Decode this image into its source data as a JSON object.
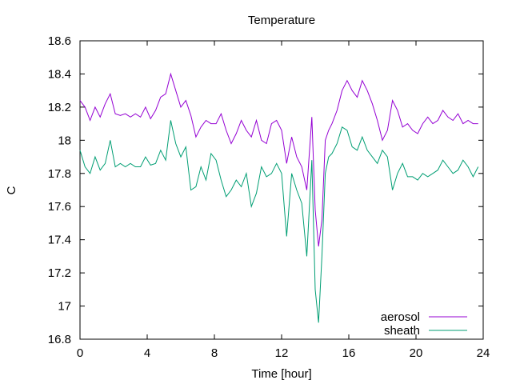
{
  "chart_data": {
    "type": "line",
    "title": "Temperature",
    "xlabel": "Time [hour]",
    "ylabel": "C",
    "xlim": [
      0,
      24
    ],
    "ylim": [
      16.8,
      18.6
    ],
    "xticks": [
      0,
      4,
      8,
      12,
      16,
      20,
      24
    ],
    "yticks": [
      16.8,
      17,
      17.2,
      17.4,
      17.6,
      17.8,
      18,
      18.2,
      18.4,
      18.6
    ],
    "xtick_labels": [
      "0",
      "4",
      "8",
      "12",
      "16",
      "20",
      "24"
    ],
    "ytick_labels": [
      "16.8",
      "17",
      "17.2",
      "17.4",
      "17.6",
      "17.8",
      "18",
      "18.2",
      "18.4",
      "18.6"
    ],
    "grid": false,
    "legend_position": "bottom-right",
    "series": [
      {
        "name": "aerosol",
        "color": "#9400d3",
        "x": [
          0,
          0.3,
          0.6,
          0.9,
          1.2,
          1.5,
          1.8,
          2.1,
          2.4,
          2.7,
          3.0,
          3.3,
          3.6,
          3.9,
          4.2,
          4.5,
          4.8,
          5.1,
          5.4,
          5.7,
          6.0,
          6.3,
          6.6,
          6.9,
          7.2,
          7.5,
          7.8,
          8.1,
          8.4,
          8.7,
          9.0,
          9.3,
          9.6,
          9.9,
          10.2,
          10.5,
          10.8,
          11.1,
          11.4,
          11.7,
          12.0,
          12.3,
          12.6,
          12.9,
          13.2,
          13.5,
          13.8,
          14.0,
          14.2,
          14.4,
          14.6,
          14.8,
          15.0,
          15.3,
          15.6,
          15.9,
          16.2,
          16.5,
          16.8,
          17.1,
          17.4,
          17.7,
          18.0,
          18.3,
          18.6,
          18.9,
          19.2,
          19.5,
          19.8,
          20.1,
          20.4,
          20.7,
          21.0,
          21.3,
          21.6,
          21.9,
          22.2,
          22.5,
          22.8,
          23.1,
          23.4,
          23.7
        ],
        "y": [
          18.24,
          18.2,
          18.12,
          18.2,
          18.14,
          18.22,
          18.28,
          18.16,
          18.15,
          18.16,
          18.14,
          18.16,
          18.14,
          18.2,
          18.13,
          18.18,
          18.26,
          18.28,
          18.4,
          18.3,
          18.2,
          18.24,
          18.15,
          18.02,
          18.08,
          18.12,
          18.1,
          18.1,
          18.16,
          18.06,
          17.98,
          18.04,
          18.12,
          18.06,
          18.02,
          18.12,
          18.0,
          17.98,
          18.1,
          18.12,
          18.06,
          17.86,
          18.02,
          17.9,
          17.84,
          17.7,
          18.14,
          17.58,
          17.36,
          17.52,
          18.0,
          18.06,
          18.1,
          18.18,
          18.3,
          18.36,
          18.3,
          18.26,
          18.36,
          18.3,
          18.22,
          18.12,
          18.0,
          18.06,
          18.24,
          18.18,
          18.08,
          18.1,
          18.06,
          18.04,
          18.1,
          18.14,
          18.1,
          18.12,
          18.18,
          18.14,
          18.12,
          18.16,
          18.1,
          18.12,
          18.1,
          18.1
        ]
      },
      {
        "name": "sheath",
        "color": "#009e73",
        "x": [
          0,
          0.3,
          0.6,
          0.9,
          1.2,
          1.5,
          1.8,
          2.1,
          2.4,
          2.7,
          3.0,
          3.3,
          3.6,
          3.9,
          4.2,
          4.5,
          4.8,
          5.1,
          5.4,
          5.7,
          6.0,
          6.3,
          6.6,
          6.9,
          7.2,
          7.5,
          7.8,
          8.1,
          8.4,
          8.7,
          9.0,
          9.3,
          9.6,
          9.9,
          10.2,
          10.5,
          10.8,
          11.1,
          11.4,
          11.7,
          12.0,
          12.3,
          12.6,
          12.9,
          13.2,
          13.5,
          13.8,
          14.0,
          14.2,
          14.4,
          14.6,
          14.8,
          15.0,
          15.3,
          15.6,
          15.9,
          16.2,
          16.5,
          16.8,
          17.1,
          17.4,
          17.7,
          18.0,
          18.3,
          18.6,
          18.9,
          19.2,
          19.5,
          19.8,
          20.1,
          20.4,
          20.7,
          21.0,
          21.3,
          21.6,
          21.9,
          22.2,
          22.5,
          22.8,
          23.1,
          23.4,
          23.7
        ],
        "y": [
          17.94,
          17.84,
          17.8,
          17.9,
          17.82,
          17.86,
          18.0,
          17.84,
          17.86,
          17.84,
          17.86,
          17.84,
          17.84,
          17.9,
          17.85,
          17.86,
          17.94,
          17.88,
          18.12,
          17.98,
          17.9,
          17.96,
          17.7,
          17.72,
          17.84,
          17.76,
          17.92,
          17.88,
          17.76,
          17.66,
          17.7,
          17.76,
          17.72,
          17.8,
          17.6,
          17.68,
          17.84,
          17.78,
          17.8,
          17.86,
          17.8,
          17.42,
          17.8,
          17.7,
          17.62,
          17.3,
          17.88,
          17.1,
          16.9,
          17.3,
          17.8,
          17.9,
          17.92,
          17.98,
          18.08,
          18.06,
          17.96,
          17.94,
          18.02,
          17.94,
          17.9,
          17.86,
          17.94,
          17.9,
          17.7,
          17.8,
          17.86,
          17.78,
          17.78,
          17.76,
          17.8,
          17.78,
          17.8,
          17.82,
          17.88,
          17.84,
          17.8,
          17.82,
          17.88,
          17.84,
          17.78,
          17.84
        ]
      }
    ]
  }
}
